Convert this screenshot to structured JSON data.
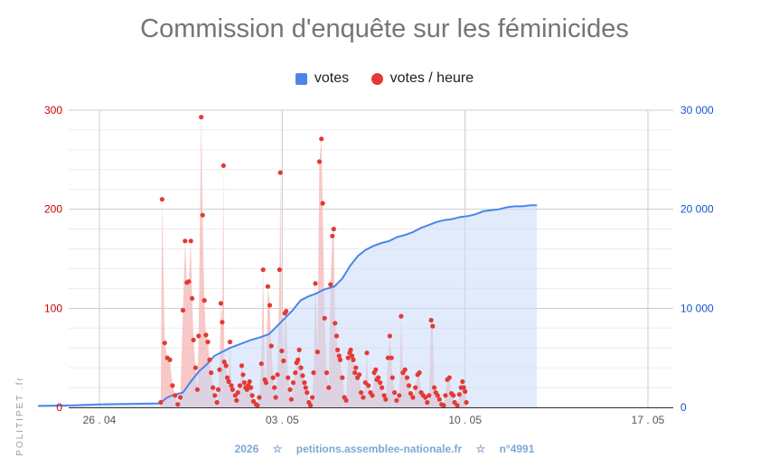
{
  "title": "Commission d'enquête sur les féminicides",
  "legend": [
    {
      "label": "votes",
      "color": "#4a86e8",
      "shape": "square"
    },
    {
      "label": "votes / heure",
      "color": "#e53935",
      "shape": "dot"
    }
  ],
  "footer": {
    "year": "2026",
    "site": "petitions.assemblee-nationale.fr",
    "id": "n°4991",
    "separator": "☆"
  },
  "watermark": "POLITIPET .fr",
  "chart_data": {
    "type": "line",
    "title": "Commission d'enquête sur les féminicides",
    "x_range": [
      "2026-04-24",
      "2026-05-17"
    ],
    "x_ticks": [
      {
        "label": "26 . 04",
        "date": "2026-04-26"
      },
      {
        "label": "03 . 05",
        "date": "2026-05-03"
      },
      {
        "label": "10 . 05",
        "date": "2026-05-10"
      },
      {
        "label": "17 . 05",
        "date": "2026-05-17"
      }
    ],
    "y_left": {
      "range": [
        0,
        300
      ],
      "ticks": [
        "0",
        "100",
        "200",
        "300"
      ],
      "color": "#cc0000"
    },
    "y_right": {
      "range": [
        0,
        30000
      ],
      "ticks": [
        "0",
        "10 000",
        "20 000",
        "30 000"
      ],
      "color": "#1155cc"
    },
    "grid": true,
    "legend_position": "top",
    "series": [
      {
        "name": "votes",
        "axis": "right",
        "style": "area",
        "color": "#4a86e8",
        "fill": "#c9daf8",
        "points": [
          [
            -0.35,
            150
          ],
          [
            1,
            200
          ],
          [
            2,
            300
          ],
          [
            3,
            350
          ],
          [
            4.3,
            400
          ],
          [
            4.6,
            1000
          ],
          [
            4.9,
            1300
          ],
          [
            5.2,
            1500
          ],
          [
            5.5,
            2600
          ],
          [
            5.8,
            3600
          ],
          [
            6.1,
            4300
          ],
          [
            6.4,
            5200
          ],
          [
            6.7,
            5600
          ],
          [
            7.0,
            6000
          ],
          [
            7.4,
            6400
          ],
          [
            7.8,
            6800
          ],
          [
            8.2,
            7100
          ],
          [
            8.5,
            7400
          ],
          [
            8.8,
            8200
          ],
          [
            9.1,
            9000
          ],
          [
            9.4,
            9800
          ],
          [
            9.7,
            10800
          ],
          [
            10.0,
            11200
          ],
          [
            10.3,
            11500
          ],
          [
            10.6,
            11900
          ],
          [
            11.0,
            12200
          ],
          [
            11.3,
            13000
          ],
          [
            11.6,
            14300
          ],
          [
            11.9,
            15300
          ],
          [
            12.2,
            15900
          ],
          [
            12.5,
            16300
          ],
          [
            12.8,
            16600
          ],
          [
            13.1,
            16800
          ],
          [
            13.4,
            17200
          ],
          [
            13.7,
            17400
          ],
          [
            14.0,
            17700
          ],
          [
            14.3,
            18100
          ],
          [
            14.6,
            18400
          ],
          [
            14.9,
            18700
          ],
          [
            15.2,
            18900
          ],
          [
            15.5,
            19000
          ],
          [
            15.8,
            19200
          ],
          [
            16.1,
            19300
          ],
          [
            16.4,
            19500
          ],
          [
            16.7,
            19800
          ],
          [
            17.0,
            19900
          ],
          [
            17.3,
            20000
          ],
          [
            17.6,
            20200
          ],
          [
            17.9,
            20300
          ],
          [
            18.2,
            20300
          ],
          [
            18.5,
            20400
          ],
          [
            18.75,
            20400
          ]
        ]
      },
      {
        "name": "votes / heure",
        "axis": "left",
        "style": "scatter+area",
        "color": "#e53935",
        "fill": "#f4b6b4",
        "points": [
          [
            4.35,
            5
          ],
          [
            4.4,
            210
          ],
          [
            4.5,
            65
          ],
          [
            4.6,
            50
          ],
          [
            4.7,
            48
          ],
          [
            4.8,
            22
          ],
          [
            4.9,
            12
          ],
          [
            5.0,
            3
          ],
          [
            5.1,
            10
          ],
          [
            5.2,
            98
          ],
          [
            5.28,
            168
          ],
          [
            5.35,
            126
          ],
          [
            5.42,
            127
          ],
          [
            5.5,
            168
          ],
          [
            5.55,
            110
          ],
          [
            5.6,
            68
          ],
          [
            5.68,
            40
          ],
          [
            5.75,
            18
          ],
          [
            5.8,
            72
          ],
          [
            5.9,
            293
          ],
          [
            5.95,
            194
          ],
          [
            6.02,
            108
          ],
          [
            6.08,
            73
          ],
          [
            6.15,
            66
          ],
          [
            6.22,
            48
          ],
          [
            6.28,
            35
          ],
          [
            6.35,
            20
          ],
          [
            6.42,
            12
          ],
          [
            6.5,
            5
          ],
          [
            6.55,
            18
          ],
          [
            6.6,
            38
          ],
          [
            6.65,
            105
          ],
          [
            6.7,
            86
          ],
          [
            6.75,
            244
          ],
          [
            6.78,
            46
          ],
          [
            6.85,
            42
          ],
          [
            6.9,
            30
          ],
          [
            6.95,
            26
          ],
          [
            7.0,
            66
          ],
          [
            7.05,
            22
          ],
          [
            7.1,
            18
          ],
          [
            7.2,
            12
          ],
          [
            7.25,
            7
          ],
          [
            7.3,
            15
          ],
          [
            7.38,
            22
          ],
          [
            7.45,
            42
          ],
          [
            7.5,
            33
          ],
          [
            7.55,
            25
          ],
          [
            7.6,
            20
          ],
          [
            7.65,
            18
          ],
          [
            7.7,
            22
          ],
          [
            7.75,
            26
          ],
          [
            7.8,
            20
          ],
          [
            7.85,
            12
          ],
          [
            7.9,
            6
          ],
          [
            8.0,
            3
          ],
          [
            8.05,
            2
          ],
          [
            8.12,
            10
          ],
          [
            8.2,
            44
          ],
          [
            8.27,
            139
          ],
          [
            8.33,
            28
          ],
          [
            8.38,
            25
          ],
          [
            8.45,
            122
          ],
          [
            8.52,
            103
          ],
          [
            8.58,
            62
          ],
          [
            8.65,
            30
          ],
          [
            8.7,
            20
          ],
          [
            8.75,
            10
          ],
          [
            8.82,
            33
          ],
          [
            8.9,
            139
          ],
          [
            8.93,
            237
          ],
          [
            8.98,
            57
          ],
          [
            9.05,
            47
          ],
          [
            9.1,
            95
          ],
          [
            9.15,
            97
          ],
          [
            9.22,
            30
          ],
          [
            9.3,
            18
          ],
          [
            9.35,
            8
          ],
          [
            9.42,
            25
          ],
          [
            9.5,
            35
          ],
          [
            9.55,
            45
          ],
          [
            9.6,
            48
          ],
          [
            9.65,
            58
          ],
          [
            9.72,
            40
          ],
          [
            9.78,
            32
          ],
          [
            9.85,
            25
          ],
          [
            9.9,
            20
          ],
          [
            9.95,
            15
          ],
          [
            10.02,
            5
          ],
          [
            10.08,
            2
          ],
          [
            10.15,
            10
          ],
          [
            10.2,
            35
          ],
          [
            10.27,
            125
          ],
          [
            10.35,
            56
          ],
          [
            10.42,
            248
          ],
          [
            10.5,
            271
          ],
          [
            10.55,
            206
          ],
          [
            10.62,
            90
          ],
          [
            10.7,
            35
          ],
          [
            10.78,
            20
          ],
          [
            10.85,
            124
          ],
          [
            10.92,
            173
          ],
          [
            10.97,
            180
          ],
          [
            11.02,
            85
          ],
          [
            11.08,
            72
          ],
          [
            11.12,
            58
          ],
          [
            11.18,
            52
          ],
          [
            11.22,
            48
          ],
          [
            11.3,
            30
          ],
          [
            11.38,
            10
          ],
          [
            11.45,
            7
          ],
          [
            11.52,
            50
          ],
          [
            11.58,
            55
          ],
          [
            11.62,
            58
          ],
          [
            11.67,
            52
          ],
          [
            11.72,
            48
          ],
          [
            11.78,
            35
          ],
          [
            11.82,
            40
          ],
          [
            11.88,
            30
          ],
          [
            11.95,
            33
          ],
          [
            12.02,
            15
          ],
          [
            12.1,
            10
          ],
          [
            12.18,
            25
          ],
          [
            12.24,
            55
          ],
          [
            12.3,
            22
          ],
          [
            12.38,
            15
          ],
          [
            12.45,
            12
          ],
          [
            12.52,
            35
          ],
          [
            12.58,
            38
          ],
          [
            12.62,
            28
          ],
          [
            12.68,
            30
          ],
          [
            12.75,
            25
          ],
          [
            12.82,
            20
          ],
          [
            12.9,
            12
          ],
          [
            12.96,
            8
          ],
          [
            13.05,
            50
          ],
          [
            13.12,
            72
          ],
          [
            13.18,
            50
          ],
          [
            13.22,
            30
          ],
          [
            13.3,
            15
          ],
          [
            13.38,
            7
          ],
          [
            13.48,
            12
          ],
          [
            13.55,
            92
          ],
          [
            13.62,
            35
          ],
          [
            13.7,
            38
          ],
          [
            13.78,
            30
          ],
          [
            13.85,
            22
          ],
          [
            13.92,
            14
          ],
          [
            14.0,
            10
          ],
          [
            14.1,
            20
          ],
          [
            14.18,
            33
          ],
          [
            14.25,
            35
          ],
          [
            14.32,
            15
          ],
          [
            14.4,
            12
          ],
          [
            14.48,
            10
          ],
          [
            14.55,
            5
          ],
          [
            14.62,
            12
          ],
          [
            14.7,
            88
          ],
          [
            14.76,
            82
          ],
          [
            14.82,
            20
          ],
          [
            14.88,
            15
          ],
          [
            14.95,
            12
          ],
          [
            15.02,
            8
          ],
          [
            15.1,
            3
          ],
          [
            15.18,
            2
          ],
          [
            15.25,
            12
          ],
          [
            15.32,
            28
          ],
          [
            15.4,
            30
          ],
          [
            15.48,
            14
          ],
          [
            15.55,
            12
          ],
          [
            15.6,
            5
          ],
          [
            15.7,
            2
          ],
          [
            15.78,
            13
          ],
          [
            15.85,
            20
          ],
          [
            15.9,
            26
          ],
          [
            15.95,
            20
          ],
          [
            16.0,
            16
          ],
          [
            16.05,
            5
          ]
        ]
      }
    ]
  }
}
